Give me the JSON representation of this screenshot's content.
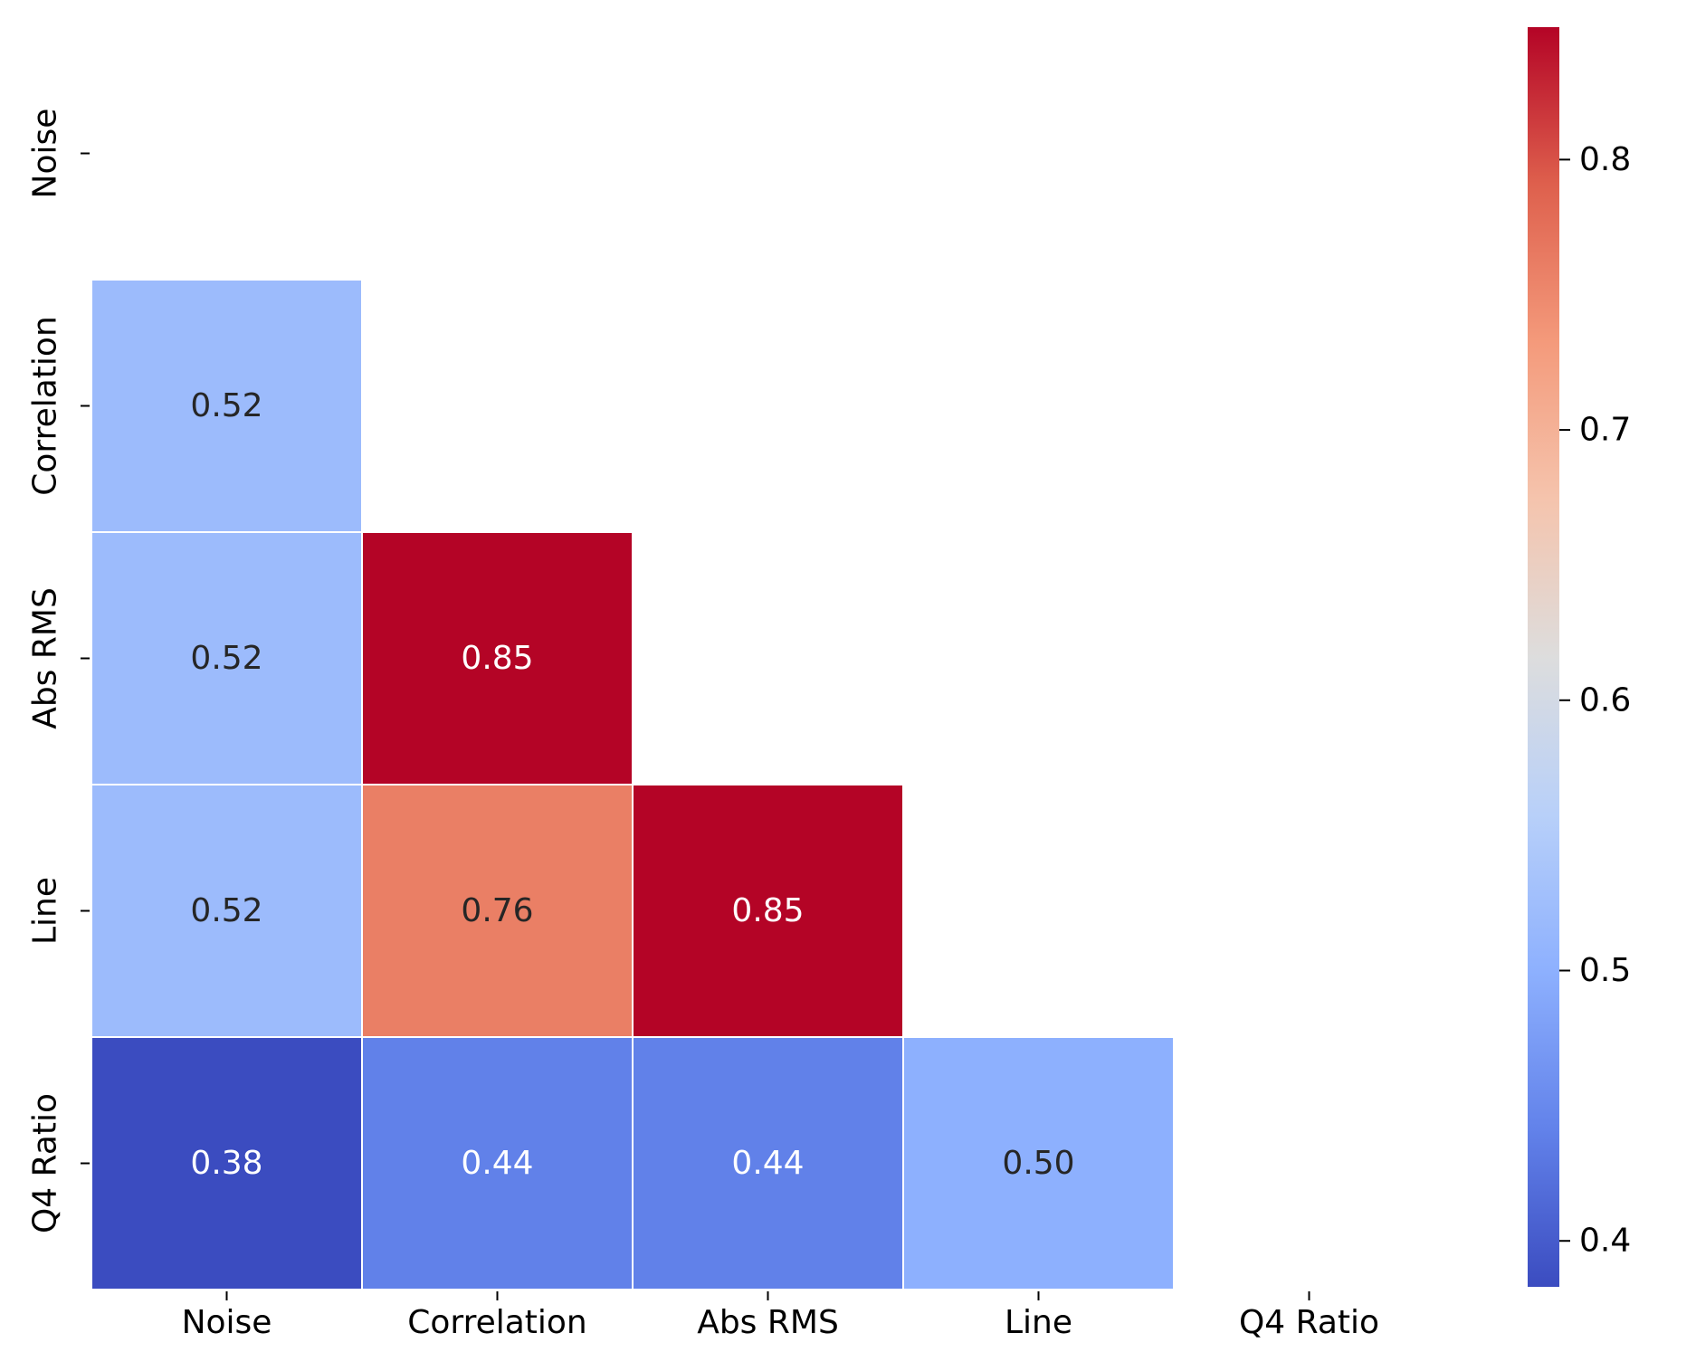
{
  "chart_data": {
    "type": "heatmap",
    "title": "",
    "xlabel": "",
    "ylabel": "",
    "variables": [
      "Noise",
      "Correlation",
      "Abs RMS",
      "Line",
      "Q4 Ratio"
    ],
    "mask": "upper-triangle-including-diagonal",
    "annotation_format": "0.00",
    "cells": [
      {
        "row": "Correlation",
        "col": "Noise",
        "value": 0.52
      },
      {
        "row": "Abs RMS",
        "col": "Noise",
        "value": 0.52
      },
      {
        "row": "Abs RMS",
        "col": "Correlation",
        "value": 0.85
      },
      {
        "row": "Line",
        "col": "Noise",
        "value": 0.52
      },
      {
        "row": "Line",
        "col": "Correlation",
        "value": 0.76
      },
      {
        "row": "Line",
        "col": "Abs RMS",
        "value": 0.85
      },
      {
        "row": "Q4 Ratio",
        "col": "Noise",
        "value": 0.38
      },
      {
        "row": "Q4 Ratio",
        "col": "Correlation",
        "value": 0.44
      },
      {
        "row": "Q4 Ratio",
        "col": "Abs RMS",
        "value": 0.44
      },
      {
        "row": "Q4 Ratio",
        "col": "Line",
        "value": 0.5
      }
    ],
    "colormap": "coolwarm",
    "colorbar": {
      "min": 0.383,
      "max": 0.849,
      "ticks": [
        0.4,
        0.5,
        0.6,
        0.7,
        0.8
      ],
      "tick_labels": [
        "0.4",
        "0.5",
        "0.6",
        "0.7",
        "0.8"
      ]
    },
    "cell_borders": "#ffffff",
    "grid": false,
    "legend": "colorbar-right"
  }
}
